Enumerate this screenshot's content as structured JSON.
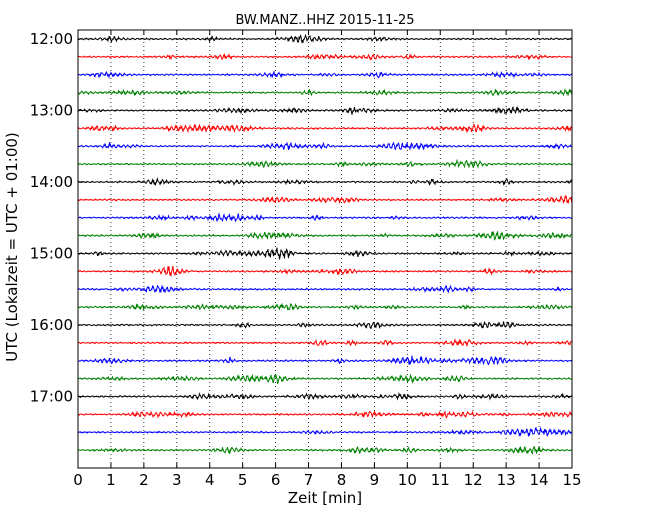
{
  "chart_data": {
    "type": "line",
    "title": "BW.MANZ..HHZ 2015-11-25",
    "xlabel": "Zeit  [min]",
    "ylabel": "UTC (Lokalzeit = UTC + 01:00)",
    "xlim": [
      0,
      15
    ],
    "x_ticks": [
      "0",
      "1",
      "2",
      "3",
      "4",
      "5",
      "6",
      "7",
      "8",
      "9",
      "10",
      "11",
      "12",
      "13",
      "14",
      "15"
    ],
    "y_ticks": [
      "12:00",
      "13:00",
      "14:00",
      "15:00",
      "16:00",
      "17:00"
    ],
    "grid": "vertical-dotted",
    "trace_interval_min": 15,
    "start_time": "12:00",
    "trace_count": 24,
    "colors": [
      "#000000",
      "#ff0000",
      "#0000ff",
      "#008000"
    ]
  }
}
